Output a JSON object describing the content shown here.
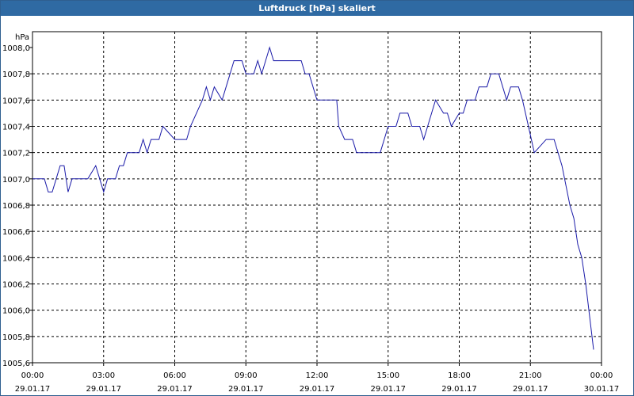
{
  "window": {
    "title": "Luftdruck [hPa] skaliert"
  },
  "colors": {
    "line": "#1a1aa8",
    "grid": "#000000",
    "titlebar": "#2f6aa3",
    "background": "#ffffff"
  },
  "chart_data": {
    "type": "line",
    "title": "Luftdruck [hPa] skaliert",
    "ylabel": "hPa",
    "xlabel": "",
    "grid": true,
    "ylim": [
      1005.6,
      1008.0
    ],
    "xlim": [
      "29.01.17 00:00",
      "30.01.17 00:00"
    ],
    "yticks": [
      "1005,6",
      "1005,8",
      "1006,0",
      "1006,2",
      "1006,4",
      "1006,6",
      "1006,8",
      "1007,0",
      "1007,2",
      "1007,4",
      "1007,6",
      "1007,8",
      "1008,0"
    ],
    "xticks": [
      {
        "time": "00:00",
        "date": "29.01.17"
      },
      {
        "time": "03:00",
        "date": "29.01.17"
      },
      {
        "time": "06:00",
        "date": "29.01.17"
      },
      {
        "time": "09:00",
        "date": "29.01.17"
      },
      {
        "time": "12:00",
        "date": "29.01.17"
      },
      {
        "time": "15:00",
        "date": "29.01.17"
      },
      {
        "time": "18:00",
        "date": "29.01.17"
      },
      {
        "time": "21:00",
        "date": "29.01.17"
      },
      {
        "time": "00:00",
        "date": "30.01.17"
      }
    ],
    "series": [
      {
        "x": [
          "00:00",
          "00:30",
          "00:40",
          "00:50",
          "01:00",
          "01:10",
          "01:20",
          "01:30",
          "01:40",
          "02:00",
          "02:20",
          "02:40",
          "02:50",
          "03:00",
          "03:10",
          "03:30",
          "03:40",
          "03:50",
          "04:00",
          "04:30",
          "04:40",
          "04:50",
          "05:00",
          "05:20",
          "05:30",
          "06:00",
          "06:30",
          "06:40",
          "07:10",
          "07:20",
          "07:30",
          "07:40",
          "08:00",
          "08:10",
          "08:20",
          "08:30",
          "08:40",
          "08:50",
          "09:00",
          "09:20",
          "09:30",
          "09:40",
          "10:00",
          "10:10",
          "11:00",
          "11:20",
          "11:30",
          "11:40",
          "12:00",
          "12:20",
          "12:50",
          "12:55",
          "13:10",
          "13:30",
          "13:40",
          "14:40",
          "14:50",
          "15:00",
          "15:20",
          "15:30",
          "15:50",
          "16:00",
          "16:20",
          "16:30",
          "16:40",
          "16:50",
          "17:00",
          "17:20",
          "17:30",
          "17:40",
          "18:00",
          "18:10",
          "18:20",
          "18:40",
          "18:50",
          "19:10",
          "19:20",
          "19:30",
          "19:40",
          "20:00",
          "20:10",
          "20:30",
          "20:40",
          "20:55",
          "21:10",
          "21:40",
          "22:00",
          "22:20",
          "22:40",
          "22:50",
          "23:00",
          "23:10",
          "23:20",
          "23:40"
        ],
        "y": [
          1007.0,
          1007.0,
          1006.9,
          1006.9,
          1007.0,
          1007.1,
          1007.1,
          1006.9,
          1007.0,
          1007.0,
          1007.0,
          1007.1,
          1007.0,
          1006.9,
          1007.0,
          1007.0,
          1007.1,
          1007.1,
          1007.2,
          1007.2,
          1007.3,
          1007.2,
          1007.3,
          1007.3,
          1007.4,
          1007.3,
          1007.3,
          1007.4,
          1007.6,
          1007.7,
          1007.6,
          1007.7,
          1007.6,
          1007.7,
          1007.8,
          1007.9,
          1007.9,
          1007.9,
          1007.8,
          1007.8,
          1007.9,
          1007.8,
          1008.0,
          1007.9,
          1007.9,
          1007.9,
          1007.8,
          1007.8,
          1007.6,
          1007.6,
          1007.6,
          1007.4,
          1007.3,
          1007.3,
          1007.2,
          1007.2,
          1007.3,
          1007.4,
          1007.4,
          1007.5,
          1007.5,
          1007.4,
          1007.4,
          1007.3,
          1007.4,
          1007.5,
          1007.6,
          1007.5,
          1007.5,
          1007.4,
          1007.5,
          1007.5,
          1007.6,
          1007.6,
          1007.7,
          1007.7,
          1007.8,
          1007.8,
          1007.8,
          1007.6,
          1007.7,
          1007.7,
          1007.6,
          1007.4,
          1007.2,
          1007.3,
          1007.3,
          1007.1,
          1006.8,
          1006.7,
          1006.5,
          1006.4,
          1006.2,
          1005.7
        ]
      }
    ]
  }
}
